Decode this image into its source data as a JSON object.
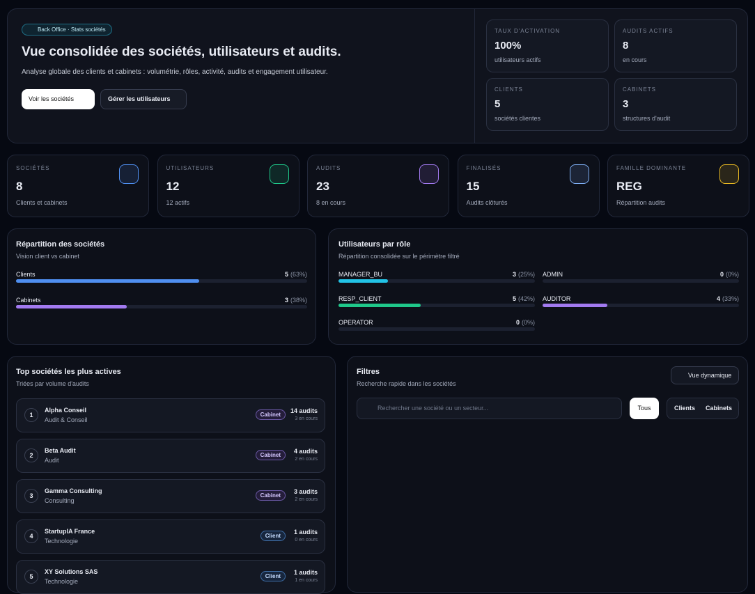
{
  "header": {
    "badge": "Back Office · Stats sociétés",
    "title": "Vue consolidée des sociétés, utilisateurs et audits.",
    "subtitle": "Analyse globale des clients et cabinets : volumétrie, rôles, activité, audits et engagement utilisateur.",
    "buttons": [
      "Voir les sociétés",
      "Gérer les utilisateurs"
    ]
  },
  "summary": [
    {
      "label": "TAUX D'ACTIVATION",
      "value": "100%",
      "note": "utilisateurs actifs"
    },
    {
      "label": "AUDITS ACTIFS",
      "value": 8,
      "note": "en cours"
    },
    {
      "label": "CLIENTS",
      "value": 5,
      "note": "sociétés clientes"
    },
    {
      "label": "CABINETS",
      "value": 3,
      "note": "structures d'audit"
    }
  ],
  "kpis": [
    {
      "label": "SOCIÉTÉS",
      "value": 8,
      "note": "Clients et cabinets",
      "color": "#4f8ff0"
    },
    {
      "label": "UTILISATEURS",
      "value": 12,
      "note": "12 actifs",
      "color": "#1fc88a"
    },
    {
      "label": "AUDITS",
      "value": 23,
      "note": "8 en cours",
      "color": "#a27af0"
    },
    {
      "label": "FINALISÉS",
      "value": 15,
      "note": "Audits clôturés",
      "color": "#7fb0f5"
    },
    {
      "label": "FAMILLE DOMINANTE",
      "value": "REG",
      "note": "Répartition audits",
      "color": "#e8b923"
    }
  ],
  "companies_split": {
    "title": "Répartition des sociétés",
    "subtitle": "Vision client vs cabinet",
    "categories": [
      "Clients",
      "Cabinets"
    ],
    "counts": [
      5,
      3
    ],
    "values": [
      63,
      38
    ],
    "value_labels": [
      "(63%)",
      "(38%)"
    ],
    "colors": [
      "#4f8ff0",
      "#a27af0"
    ],
    "xlim": [
      0,
      100
    ]
  },
  "roles": {
    "title": "Utilisateurs par rôle",
    "subtitle": "Répartition consolidée sur le périmètre filtré",
    "categories": [
      "MANAGER_BU",
      "ADMIN",
      "RESP_CLIENT",
      "AUDITOR",
      "OPERATOR"
    ],
    "counts": [
      3,
      0,
      5,
      4,
      0
    ],
    "values": [
      25,
      0,
      42,
      33,
      0
    ],
    "value_labels": [
      "(25%)",
      "(0%)",
      "(42%)",
      "(33%)",
      "(0%)"
    ],
    "colors": [
      "#22c3e6",
      "#64748b",
      "#1fc88a",
      "#a27af0",
      "#64748b"
    ],
    "xlim": [
      0,
      100
    ]
  },
  "top": {
    "title": "Top sociétés les plus actives",
    "subtitle": "Triées par volume d'audits",
    "rows": [
      {
        "rank": 1,
        "name": "Alpha Conseil",
        "sector": "Audit & Conseil",
        "type": "Cabinet",
        "audits": "14 audits",
        "ongoing": "3 en cours"
      },
      {
        "rank": 2,
        "name": "Beta Audit",
        "sector": "Audit",
        "type": "Cabinet",
        "audits": "4 audits",
        "ongoing": "2 en cours"
      },
      {
        "rank": 3,
        "name": "Gamma Consulting",
        "sector": "Consulting",
        "type": "Cabinet",
        "audits": "3 audits",
        "ongoing": "2 en cours"
      },
      {
        "rank": 4,
        "name": "StartupIA France",
        "sector": "Technologie",
        "type": "Client",
        "audits": "1 audits",
        "ongoing": "0 en cours"
      },
      {
        "rank": 5,
        "name": "XY Solutions SAS",
        "sector": "Technologie",
        "type": "Client",
        "audits": "1 audits",
        "ongoing": "1 en cours"
      }
    ]
  },
  "filters": {
    "title": "Filtres",
    "subtitle": "Recherche rapide dans les sociétés",
    "button": "Vue dynamique",
    "search_placeholder": "Rechercher une société ou un secteur...",
    "tabs": [
      "Tous",
      "Clients",
      "Cabinets"
    ]
  }
}
